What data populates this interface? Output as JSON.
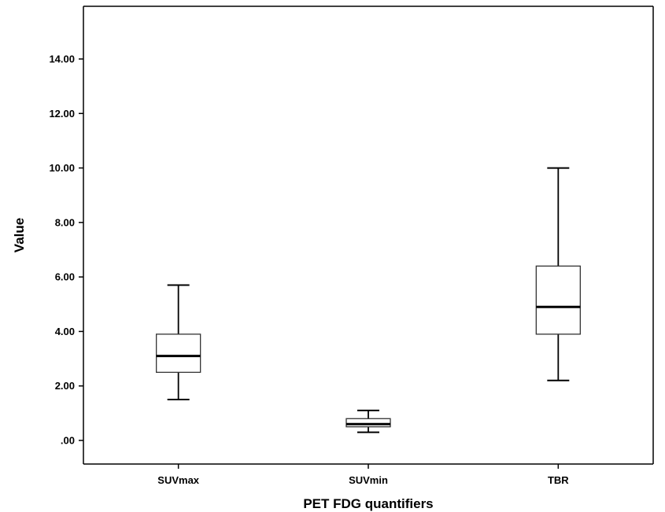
{
  "chart_data": {
    "type": "box",
    "title": "",
    "xlabel": "PET FDG quantifiers",
    "ylabel": "Value",
    "ylim": [
      -0.8,
      15.3
    ],
    "yticks": [
      0,
      2,
      4,
      6,
      8,
      10,
      12,
      14
    ],
    "ytick_labels": [
      ".00",
      "2.00",
      "4.00",
      "6.00",
      "8.00",
      "10.00",
      "12.00",
      "14.00"
    ],
    "grid": false,
    "categories": [
      "SUVmax",
      "SUVmin",
      "TBR"
    ],
    "boxes": [
      {
        "category": "SUVmax",
        "min": 1.5,
        "q1": 2.5,
        "median": 3.1,
        "q3": 3.9,
        "max": 5.7
      },
      {
        "category": "SUVmin",
        "min": 0.3,
        "q1": 0.5,
        "median": 0.6,
        "q3": 0.8,
        "max": 1.1
      },
      {
        "category": "TBR",
        "min": 2.2,
        "q1": 3.9,
        "median": 4.9,
        "q3": 6.4,
        "max": 10.0
      }
    ],
    "colors": {
      "box_fill": "#ffffff",
      "line": "#000000",
      "box_edge": "#333333"
    }
  }
}
